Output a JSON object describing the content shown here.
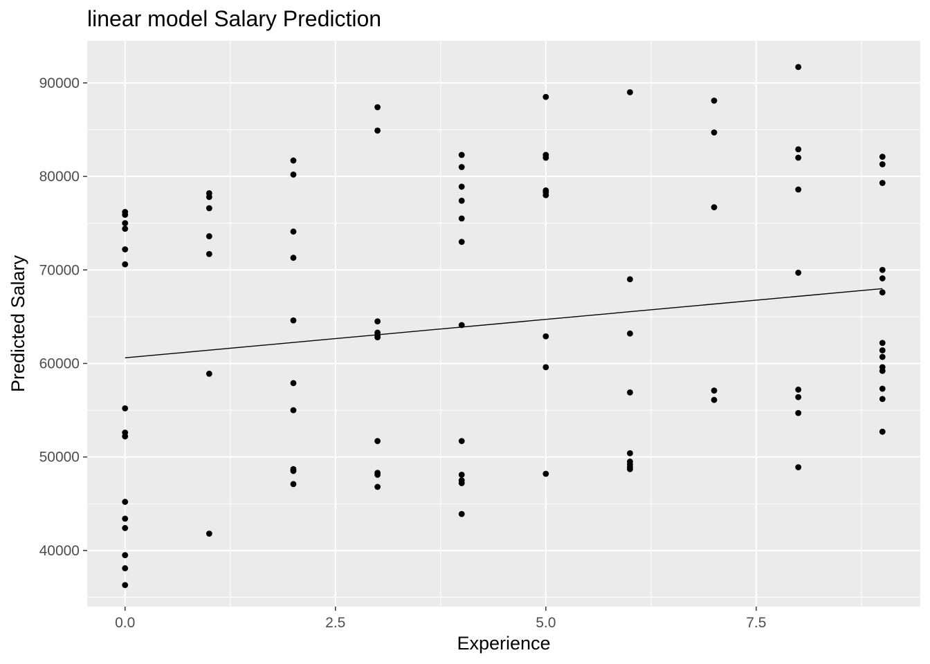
{
  "chart_data": {
    "type": "scatter",
    "title": "linear model Salary Prediction",
    "xlabel": "Experience",
    "ylabel": "Predicted Salary",
    "xlim": [
      -0.45,
      9.45
    ],
    "ylim": [
      34000,
      94500
    ],
    "x_ticks": [
      0,
      2.5,
      5,
      7.5
    ],
    "x_tick_labels": [
      "0.0",
      "2.5",
      "5.0",
      "7.5"
    ],
    "x_minor_ticks": [
      1.25,
      3.75,
      6.25,
      8.75
    ],
    "y_ticks": [
      40000,
      50000,
      60000,
      70000,
      80000,
      90000
    ],
    "y_tick_labels": [
      "40000",
      "50000",
      "60000",
      "70000",
      "80000",
      "90000"
    ],
    "y_minor_ticks": [
      35000,
      45000,
      55000,
      65000,
      75000,
      85000
    ],
    "grid": true,
    "legend": "none",
    "colors": {
      "panel": "#ebebeb",
      "grid": "#ffffff",
      "point": "#000000",
      "line": "#000000"
    },
    "points": [
      {
        "x": 0,
        "y": 76200
      },
      {
        "x": 0,
        "y": 75900
      },
      {
        "x": 0,
        "y": 75000
      },
      {
        "x": 0,
        "y": 74400
      },
      {
        "x": 0,
        "y": 72200
      },
      {
        "x": 0,
        "y": 70600
      },
      {
        "x": 0,
        "y": 55200
      },
      {
        "x": 0,
        "y": 52600
      },
      {
        "x": 0,
        "y": 52200
      },
      {
        "x": 0,
        "y": 45200
      },
      {
        "x": 0,
        "y": 43400
      },
      {
        "x": 0,
        "y": 42400
      },
      {
        "x": 0,
        "y": 39500
      },
      {
        "x": 0,
        "y": 38100
      },
      {
        "x": 0,
        "y": 36300
      },
      {
        "x": 1,
        "y": 78200
      },
      {
        "x": 1,
        "y": 77800
      },
      {
        "x": 1,
        "y": 76600
      },
      {
        "x": 1,
        "y": 73600
      },
      {
        "x": 1,
        "y": 71700
      },
      {
        "x": 1,
        "y": 58900
      },
      {
        "x": 1,
        "y": 41800
      },
      {
        "x": 2,
        "y": 81700
      },
      {
        "x": 2,
        "y": 80200
      },
      {
        "x": 2,
        "y": 74100
      },
      {
        "x": 2,
        "y": 71300
      },
      {
        "x": 2,
        "y": 64600
      },
      {
        "x": 2,
        "y": 57900
      },
      {
        "x": 2,
        "y": 55000
      },
      {
        "x": 2,
        "y": 48700
      },
      {
        "x": 2,
        "y": 48500
      },
      {
        "x": 2,
        "y": 47100
      },
      {
        "x": 3,
        "y": 87400
      },
      {
        "x": 3,
        "y": 84900
      },
      {
        "x": 3,
        "y": 64500
      },
      {
        "x": 3,
        "y": 63300
      },
      {
        "x": 3,
        "y": 63000
      },
      {
        "x": 3,
        "y": 62800
      },
      {
        "x": 3,
        "y": 51700
      },
      {
        "x": 3,
        "y": 48300
      },
      {
        "x": 3,
        "y": 48100
      },
      {
        "x": 3,
        "y": 46800
      },
      {
        "x": 4,
        "y": 82300
      },
      {
        "x": 4,
        "y": 81000
      },
      {
        "x": 4,
        "y": 78900
      },
      {
        "x": 4,
        "y": 77400
      },
      {
        "x": 4,
        "y": 75500
      },
      {
        "x": 4,
        "y": 73000
      },
      {
        "x": 4,
        "y": 64100
      },
      {
        "x": 4,
        "y": 51700
      },
      {
        "x": 4,
        "y": 48100
      },
      {
        "x": 4,
        "y": 47500
      },
      {
        "x": 4,
        "y": 47200
      },
      {
        "x": 4,
        "y": 43900
      },
      {
        "x": 5,
        "y": 88500
      },
      {
        "x": 5,
        "y": 82300
      },
      {
        "x": 5,
        "y": 82000
      },
      {
        "x": 5,
        "y": 78500
      },
      {
        "x": 5,
        "y": 78300
      },
      {
        "x": 5,
        "y": 78000
      },
      {
        "x": 5,
        "y": 62900
      },
      {
        "x": 5,
        "y": 59600
      },
      {
        "x": 5,
        "y": 48200
      },
      {
        "x": 6,
        "y": 89000
      },
      {
        "x": 6,
        "y": 69000
      },
      {
        "x": 6,
        "y": 63200
      },
      {
        "x": 6,
        "y": 56900
      },
      {
        "x": 6,
        "y": 50400
      },
      {
        "x": 6,
        "y": 49500
      },
      {
        "x": 6,
        "y": 49200
      },
      {
        "x": 6,
        "y": 48900
      },
      {
        "x": 6,
        "y": 48700
      },
      {
        "x": 7,
        "y": 88100
      },
      {
        "x": 7,
        "y": 84700
      },
      {
        "x": 7,
        "y": 76700
      },
      {
        "x": 7,
        "y": 57100
      },
      {
        "x": 7,
        "y": 56100
      },
      {
        "x": 8,
        "y": 91700
      },
      {
        "x": 8,
        "y": 82900
      },
      {
        "x": 8,
        "y": 82000
      },
      {
        "x": 8,
        "y": 78600
      },
      {
        "x": 8,
        "y": 69700
      },
      {
        "x": 8,
        "y": 57200
      },
      {
        "x": 8,
        "y": 56400
      },
      {
        "x": 8,
        "y": 54700
      },
      {
        "x": 8,
        "y": 48900
      },
      {
        "x": 9,
        "y": 82100
      },
      {
        "x": 9,
        "y": 81300
      },
      {
        "x": 9,
        "y": 79300
      },
      {
        "x": 9,
        "y": 70000
      },
      {
        "x": 9,
        "y": 69100
      },
      {
        "x": 9,
        "y": 67600
      },
      {
        "x": 9,
        "y": 62200
      },
      {
        "x": 9,
        "y": 61400
      },
      {
        "x": 9,
        "y": 60700
      },
      {
        "x": 9,
        "y": 59600
      },
      {
        "x": 9,
        "y": 59200
      },
      {
        "x": 9,
        "y": 57300
      },
      {
        "x": 9,
        "y": 56200
      },
      {
        "x": 9,
        "y": 52700
      }
    ],
    "fit_line": {
      "x": [
        0,
        9
      ],
      "y": [
        60600,
        68000
      ]
    }
  }
}
